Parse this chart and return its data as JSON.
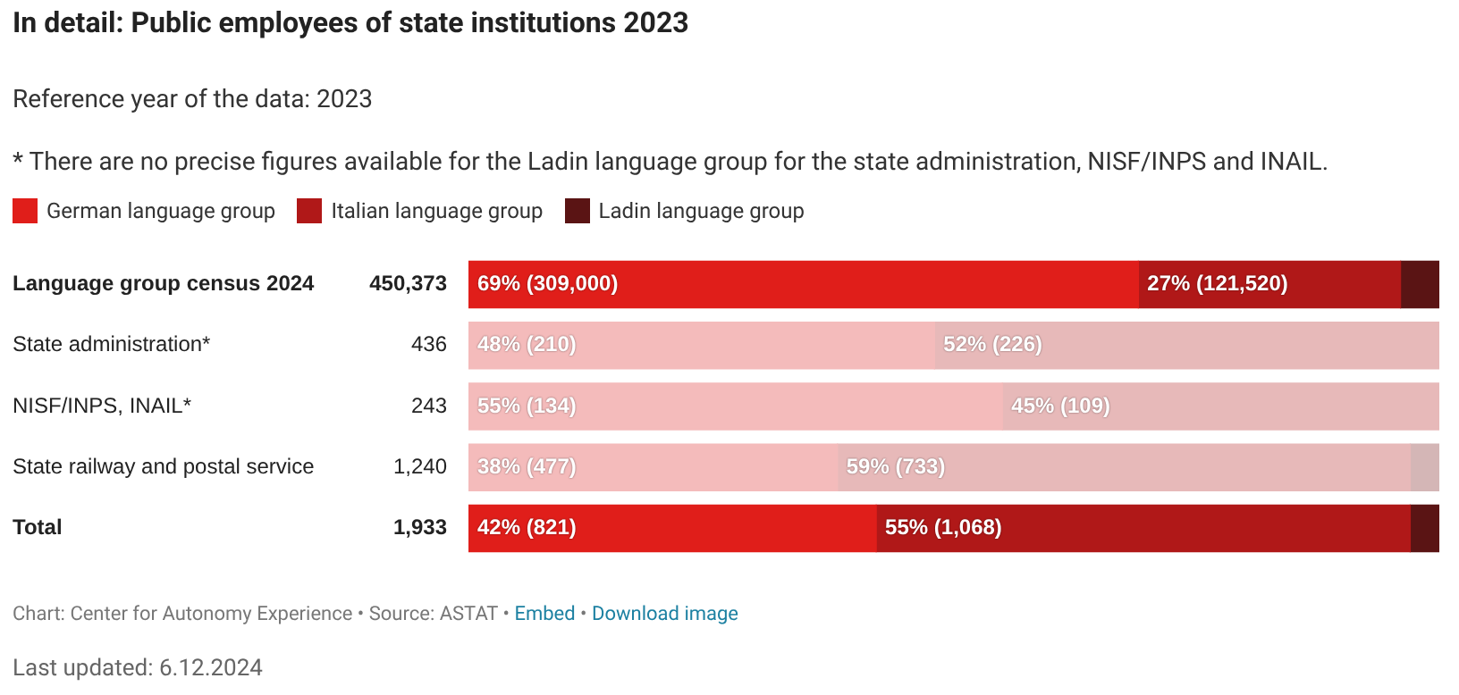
{
  "chart_data": {
    "type": "bar",
    "orientation": "horizontal",
    "stacked": true,
    "title": "In detail: Public employees of state institutions 2023",
    "subtitle": "Reference year of the data: 2023",
    "annotations": [
      "* There are no precise figures available for the Ladin language group for the state administration, NISF/INPS and INAIL.",
      "Chart: Center for Autonomy Experience • Source: ASTAT • Embed • Download image",
      "Last updated: 6.12.2024",
      "450,373",
      "436",
      "243",
      "1,240",
      "1,933"
    ],
    "categories": [
      "Language group census 2024",
      "State administration*",
      "NISF/INPS, INAIL*",
      "State railway and postal service",
      "Total"
    ],
    "xlim": [
      0,
      100
    ],
    "tick_labels": "y",
    "legend": "top left",
    "series": [
      {
        "name": "German language group",
        "color": "#e01e1a",
        "colors": [
          "#e01e1a",
          "#f4bbbb",
          "#f4bbbb",
          "#f4bbbb",
          "#e01e1a"
        ],
        "values": [
          69,
          48,
          55,
          38,
          42
        ],
        "value_labels": [
          "69% (309,000)",
          "48% (210)",
          "55% (134)",
          "38% (477)",
          "42% (821)"
        ]
      },
      {
        "name": "Italian language group",
        "color": "#b01818",
        "colors": [
          "#b01818",
          "#e7b9b9",
          "#e7b9b9",
          "#e7b9b9",
          "#b01818"
        ],
        "values": [
          27,
          52,
          45,
          59,
          55
        ],
        "value_labels": [
          "27% (121,520)",
          "52% (226)",
          "45% (109)",
          "59% (733)",
          "55% (1,068)"
        ]
      },
      {
        "name": "Ladin language group",
        "color": "#5a1414",
        "colors": [
          "#5a1414",
          "#d9b8b8",
          "#d9b8b8",
          "#d4b6b6",
          "#5a1414"
        ],
        "values": [
          4,
          null,
          null,
          3,
          3
        ],
        "value_labels": [
          null,
          null,
          null,
          null,
          null
        ]
      }
    ]
  }
}
